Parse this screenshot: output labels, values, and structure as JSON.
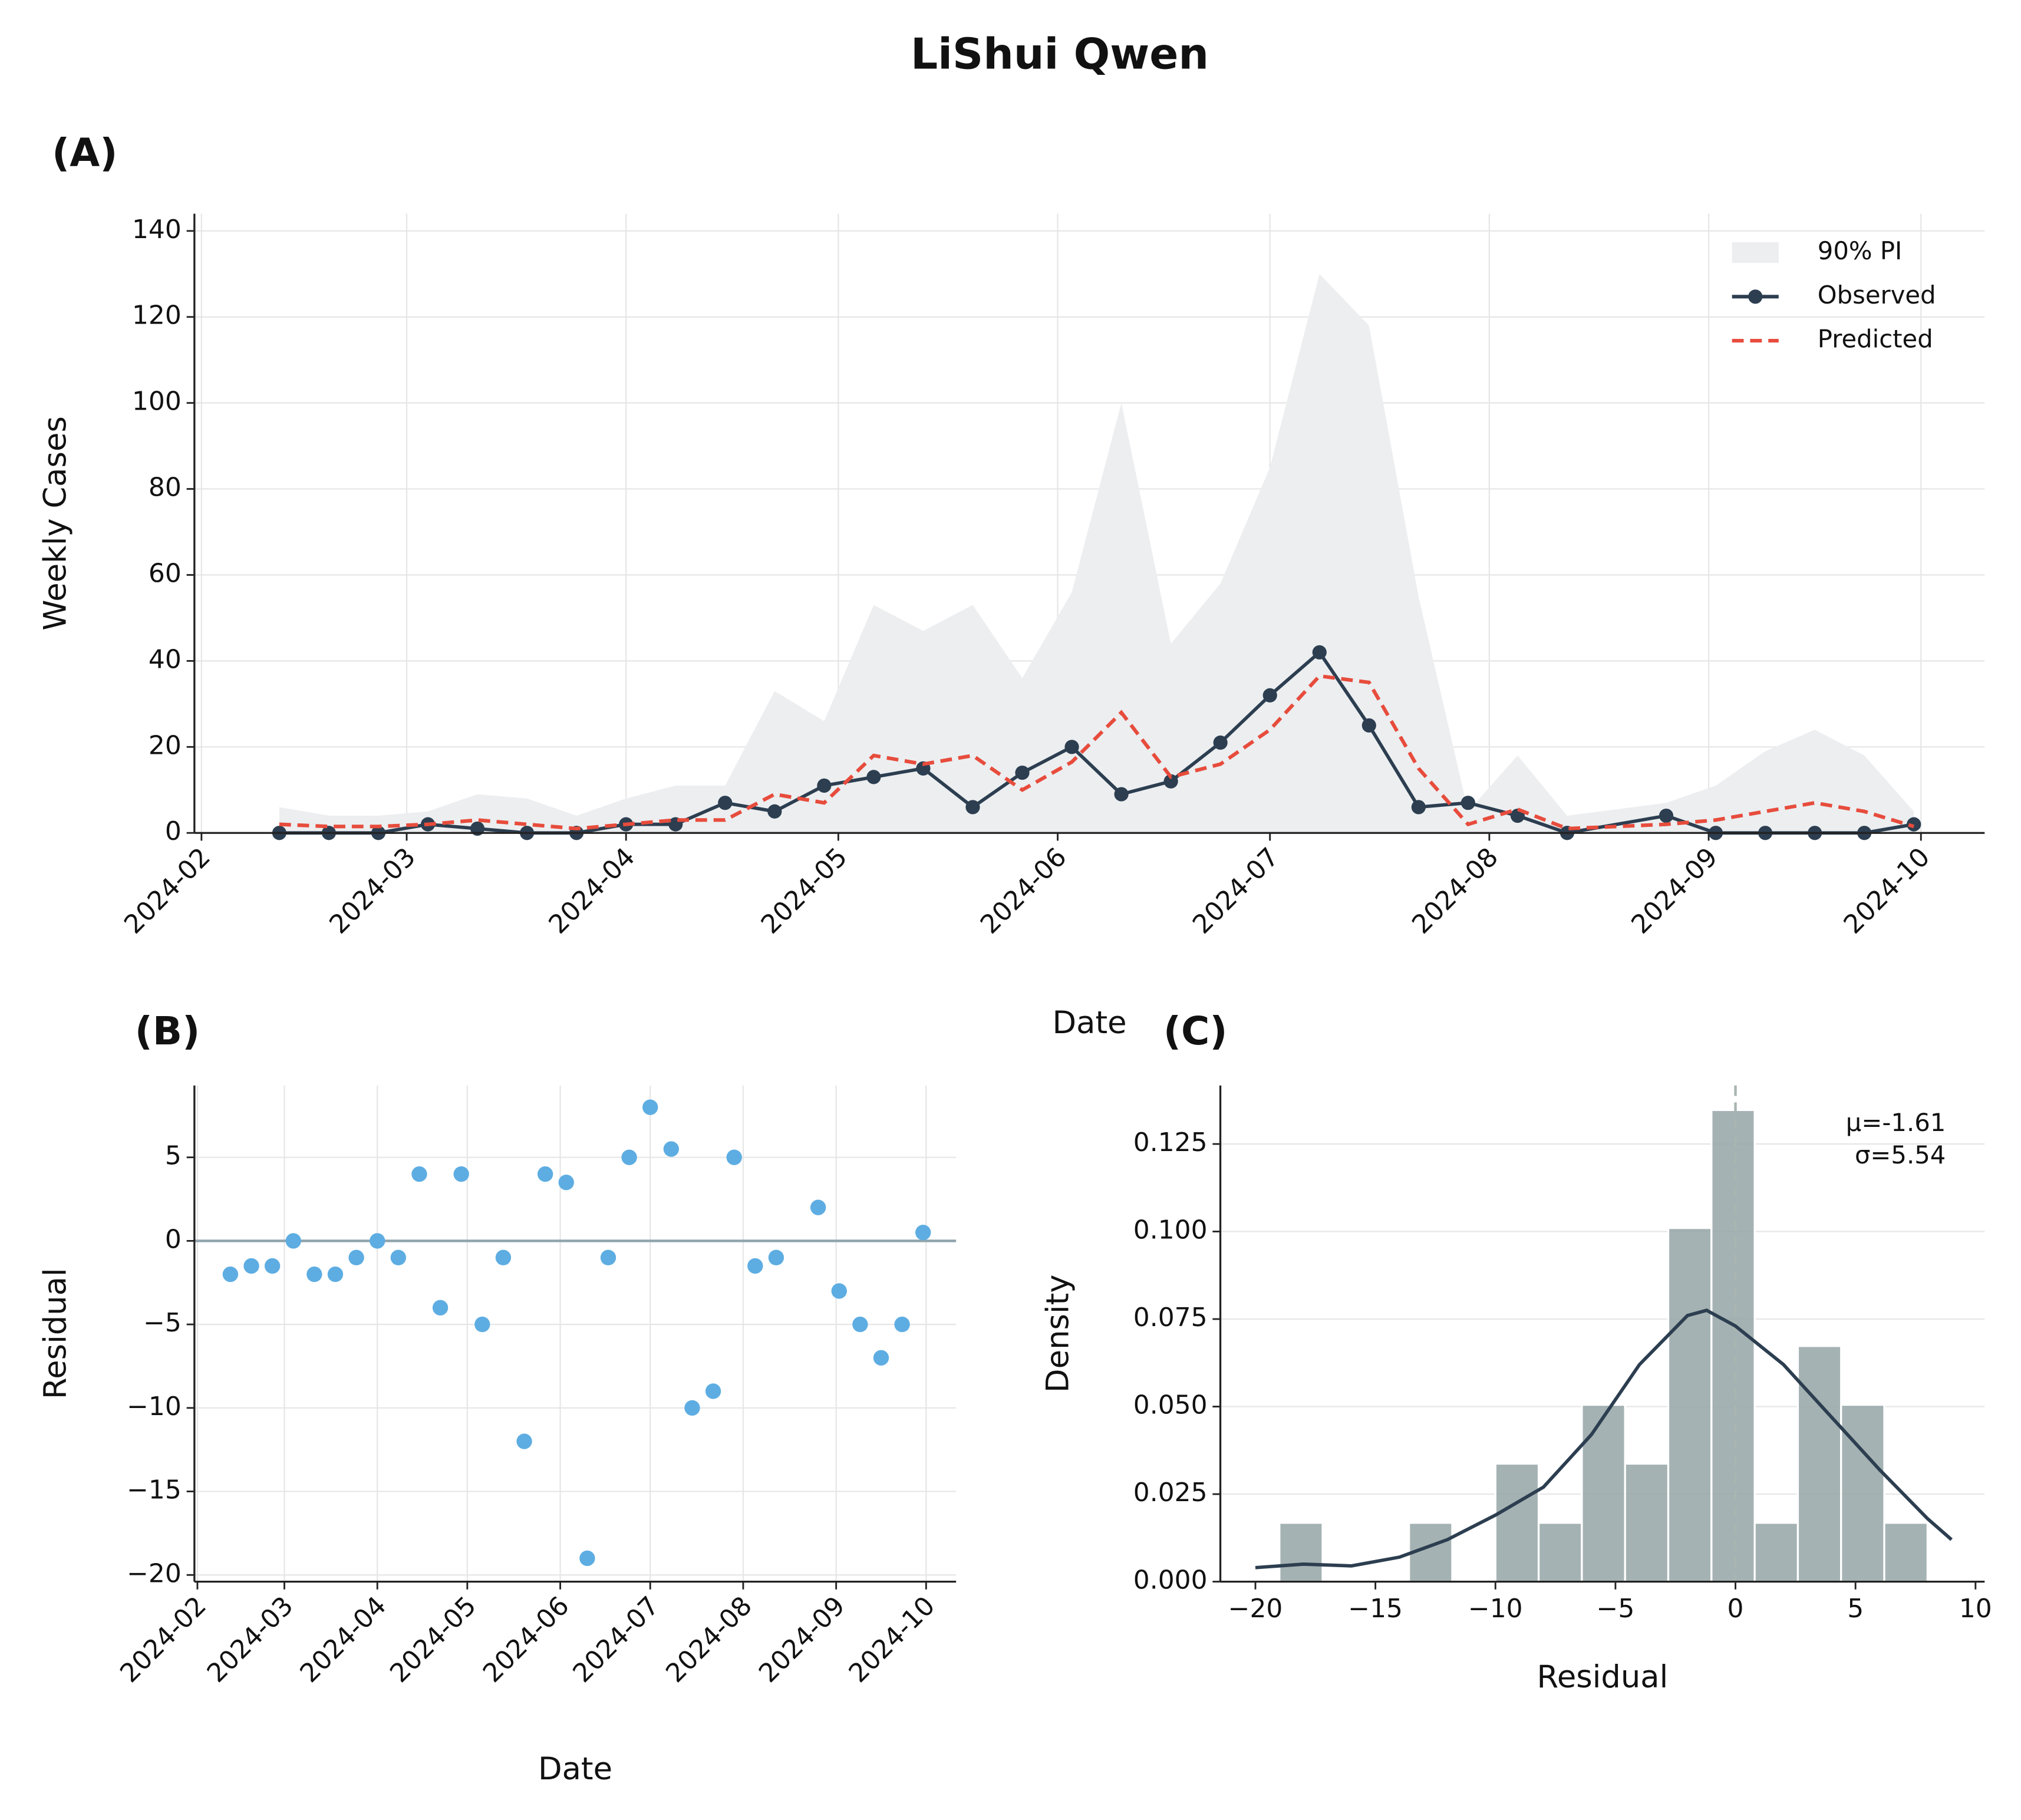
{
  "title": "LiShui Qwen",
  "chart_data": [
    {
      "type": "line",
      "title": "(A)",
      "xlabel": "Date",
      "ylabel": "Weekly Cases",
      "legend": "upper right",
      "grid": true,
      "x": [
        "2024-02-12",
        "2024-02-19",
        "2024-02-26",
        "2024-03-04",
        "2024-03-11",
        "2024-03-18",
        "2024-03-25",
        "2024-04-01",
        "2024-04-08",
        "2024-04-15",
        "2024-04-22",
        "2024-04-29",
        "2024-05-06",
        "2024-05-13",
        "2024-05-20",
        "2024-05-27",
        "2024-06-03",
        "2024-06-10",
        "2024-06-17",
        "2024-06-24",
        "2024-07-01",
        "2024-07-08",
        "2024-07-15",
        "2024-07-22",
        "2024-07-29",
        "2024-08-05",
        "2024-08-12",
        "2024-08-26",
        "2024-09-02",
        "2024-09-09",
        "2024-09-16",
        "2024-09-23",
        "2024-09-30"
      ],
      "band": {
        "name": "90% PI",
        "color": "#eceef0",
        "lower": [
          0,
          0,
          0,
          0,
          0,
          0,
          0,
          0,
          0,
          0,
          0,
          0,
          0,
          0,
          0,
          0,
          0,
          0,
          0,
          0,
          0,
          0,
          0,
          0,
          0,
          0,
          0,
          0,
          0,
          0,
          0,
          0,
          0
        ],
        "upper": [
          6,
          4,
          4,
          5,
          9,
          8,
          4,
          8,
          11,
          11,
          33,
          26,
          53,
          47,
          53,
          36,
          56,
          100,
          44,
          58,
          85,
          130,
          118,
          55,
          5,
          18,
          4,
          7,
          11,
          19,
          24,
          18,
          5
        ]
      },
      "series": [
        {
          "name": "Observed",
          "color": "#2c3e50",
          "values": [
            0,
            0,
            0,
            2,
            1,
            0,
            0,
            2,
            2,
            7,
            5,
            11,
            13,
            15,
            6,
            14,
            20,
            9,
            12,
            21,
            32,
            42,
            25,
            6,
            7,
            4,
            0,
            4,
            0,
            0,
            0,
            0,
            2
          ]
        },
        {
          "name": "Predicted",
          "color": "#e74c3c",
          "dashed": true,
          "values": [
            2,
            1.5,
            1.5,
            2,
            3,
            2,
            1,
            2,
            3,
            3,
            9,
            7,
            18,
            16,
            18,
            10,
            16.5,
            28,
            13,
            16,
            24,
            36.5,
            35,
            15,
            2,
            5.5,
            1,
            2,
            3,
            5,
            7,
            5,
            1.5
          ]
        }
      ],
      "xlim": [
        "2024-01-31",
        "2024-10-10"
      ],
      "xticks": [
        "2024-02",
        "2024-03",
        "2024-04",
        "2024-05",
        "2024-06",
        "2024-07",
        "2024-08",
        "2024-09",
        "2024-10"
      ],
      "ylim": [
        0,
        144
      ],
      "yticks": [
        0,
        20,
        40,
        60,
        80,
        100,
        120,
        140
      ]
    },
    {
      "type": "scatter",
      "title": "(B)",
      "xlabel": "Date",
      "ylabel": "Residual",
      "grid": true,
      "color": "#5dade2",
      "hline": 0,
      "x": [
        "2024-02-12",
        "2024-02-19",
        "2024-02-26",
        "2024-03-04",
        "2024-03-11",
        "2024-03-18",
        "2024-03-25",
        "2024-04-01",
        "2024-04-08",
        "2024-04-15",
        "2024-04-22",
        "2024-04-29",
        "2024-05-06",
        "2024-05-13",
        "2024-05-20",
        "2024-05-27",
        "2024-06-03",
        "2024-06-10",
        "2024-06-17",
        "2024-06-24",
        "2024-07-01",
        "2024-07-08",
        "2024-07-15",
        "2024-07-22",
        "2024-07-29",
        "2024-08-05",
        "2024-08-12",
        "2024-08-26",
        "2024-09-02",
        "2024-09-09",
        "2024-09-16",
        "2024-09-23",
        "2024-09-30"
      ],
      "values": [
        -2,
        -1.5,
        -1.5,
        0,
        -2,
        -2,
        -1,
        0,
        -1,
        4,
        -4,
        4,
        -5,
        -1,
        -12,
        4,
        3.5,
        -19,
        -1,
        5,
        8,
        5.5,
        -10,
        -9,
        5,
        -1.5,
        -1,
        2,
        -3,
        -5,
        -7,
        -5,
        0.5
      ],
      "xlim": [
        "2024-01-31",
        "2024-10-11"
      ],
      "xticks": [
        "2024-02",
        "2024-03",
        "2024-04",
        "2024-05",
        "2024-06",
        "2024-07",
        "2024-08",
        "2024-09",
        "2024-10"
      ],
      "ylim": [
        -20.4,
        9.3
      ],
      "yticks": [
        {
          "value": -20,
          "label": "−20"
        },
        {
          "value": -15,
          "label": "−15"
        },
        {
          "value": -10,
          "label": "−10"
        },
        {
          "value": -5,
          "label": "−5"
        },
        0,
        5
      ]
    },
    {
      "type": "histogram",
      "title": "(C)",
      "xlabel": "Residual",
      "ylabel": "Density",
      "grid": "y",
      "color": "#95a5a6",
      "vline": 0,
      "bins": [
        -19,
        -17.2,
        -15.4,
        -13.6,
        -11.8,
        -10,
        -8.2,
        -6.4,
        -4.6,
        -2.8,
        -1,
        0.8,
        2.6,
        4.4,
        6.2,
        8
      ],
      "values": [
        0.0168,
        0,
        0,
        0.0168,
        0,
        0.0337,
        0.0168,
        0.0505,
        0.0337,
        0.101,
        0.1347,
        0.0168,
        0.0673,
        0.0505,
        0.0168
      ],
      "kde": {
        "color": "#2c3e50",
        "x": [
          -20,
          -18,
          -16,
          -14,
          -12,
          -10,
          -8,
          -6,
          -4,
          -2,
          -1.2,
          0,
          2,
          4,
          6,
          8,
          9
        ],
        "y": [
          0.004,
          0.005,
          0.0045,
          0.007,
          0.012,
          0.019,
          0.027,
          0.042,
          0.062,
          0.076,
          0.0775,
          0.073,
          0.062,
          0.047,
          0.032,
          0.018,
          0.012
        ]
      },
      "annotations": [
        "μ=-1.61",
        "σ=5.54"
      ],
      "xlim": [
        -21.46,
        10.38
      ],
      "xticks": [
        {
          "value": -20,
          "label": "−20"
        },
        {
          "value": -15,
          "label": "−15"
        },
        {
          "value": -10,
          "label": "−10"
        },
        {
          "value": -5,
          "label": "−5"
        },
        0,
        5,
        10
      ],
      "ylim": [
        0,
        0.1417
      ],
      "yticks": [
        {
          "value": 0,
          "label": "0.000"
        },
        {
          "value": 0.025,
          "label": "0.025"
        },
        {
          "value": 0.05,
          "label": "0.050"
        },
        {
          "value": 0.075,
          "label": "0.075"
        },
        {
          "value": 0.1,
          "label": "0.100"
        },
        {
          "value": 0.125,
          "label": "0.125"
        }
      ]
    }
  ]
}
